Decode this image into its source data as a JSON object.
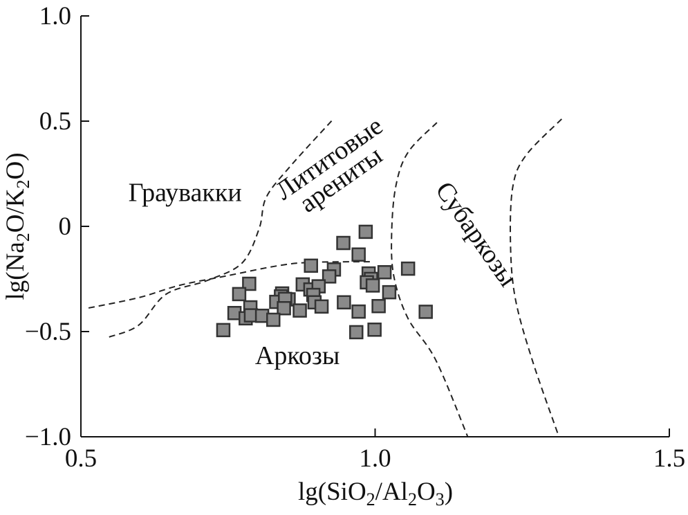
{
  "chart_data": {
    "type": "scatter",
    "xlabel": "lg(SiO2/Al2O3)",
    "ylabel": "lg(Na2O/K2O)",
    "xlim": [
      0.5,
      1.5
    ],
    "ylim": [
      -1.0,
      1.0
    ],
    "xticks": [
      "0.5",
      "1.0",
      "1.5"
    ],
    "xtick_values": [
      0.5,
      1.0,
      1.5
    ],
    "yticks": [
      "1.0",
      "0.5",
      "0",
      "−0.5",
      "−1.0"
    ],
    "ytick_values": [
      1.0,
      0.5,
      0,
      -0.5,
      -1.0
    ],
    "grid": false,
    "marker": "square",
    "colors": {
      "marker_fill": "#8a8a8a",
      "marker_edge": "#333333",
      "boundary": "#222222"
    },
    "points": [
      [
        0.984,
        -0.026
      ],
      [
        0.946,
        -0.079
      ],
      [
        0.972,
        -0.134
      ],
      [
        0.891,
        -0.187
      ],
      [
        0.93,
        -0.205
      ],
      [
        0.922,
        -0.238
      ],
      [
        0.786,
        -0.273
      ],
      [
        0.769,
        -0.322
      ],
      [
        0.877,
        -0.276
      ],
      [
        0.89,
        -0.3
      ],
      [
        0.904,
        -0.285
      ],
      [
        0.895,
        -0.326
      ],
      [
        0.897,
        -0.361
      ],
      [
        0.909,
        -0.381
      ],
      [
        0.842,
        -0.319
      ],
      [
        0.84,
        -0.333
      ],
      [
        0.832,
        -0.359
      ],
      [
        0.853,
        -0.347
      ],
      [
        0.847,
        -0.345
      ],
      [
        0.845,
        -0.389
      ],
      [
        0.872,
        -0.4
      ],
      [
        0.788,
        -0.385
      ],
      [
        0.761,
        -0.412
      ],
      [
        0.78,
        -0.437
      ],
      [
        0.789,
        -0.423
      ],
      [
        0.808,
        -0.425
      ],
      [
        0.827,
        -0.444
      ],
      [
        0.742,
        -0.493
      ],
      [
        0.989,
        -0.224
      ],
      [
        0.993,
        -0.25
      ],
      [
        0.986,
        -0.266
      ],
      [
        0.996,
        -0.281
      ],
      [
        1.016,
        -0.218
      ],
      [
        1.056,
        -0.201
      ],
      [
        1.024,
        -0.313
      ],
      [
        0.947,
        -0.361
      ],
      [
        0.972,
        -0.405
      ],
      [
        1.006,
        -0.379
      ],
      [
        1.086,
        -0.406
      ],
      [
        0.968,
        -0.503
      ],
      [
        0.999,
        -0.491
      ]
    ],
    "boundaries": [
      [
        [
          0.513,
          -0.388
        ],
        [
          0.598,
          -0.339
        ],
        [
          0.668,
          -0.28
        ],
        [
          0.75,
          -0.234
        ],
        [
          0.833,
          -0.188
        ],
        [
          0.891,
          -0.171
        ],
        [
          0.997,
          -0.168
        ]
      ],
      [
        [
          0.548,
          -0.526
        ],
        [
          0.598,
          -0.47
        ],
        [
          0.645,
          -0.322
        ],
        [
          0.715,
          -0.257
        ],
        [
          0.774,
          -0.174
        ],
        [
          0.803,
          -0.01
        ],
        [
          0.815,
          0.138
        ],
        [
          0.856,
          0.286
        ],
        [
          0.929,
          0.51
        ]
      ],
      [
        [
          1.105,
          0.493
        ],
        [
          1.056,
          0.352
        ],
        [
          1.035,
          0.188
        ],
        [
          1.028,
          -0.043
        ],
        [
          1.032,
          -0.24
        ],
        [
          1.056,
          -0.438
        ],
        [
          1.103,
          -0.635
        ],
        [
          1.157,
          -0.997
        ]
      ],
      [
        [
          1.317,
          0.51
        ],
        [
          1.256,
          0.336
        ],
        [
          1.234,
          0.188
        ],
        [
          1.23,
          -0.076
        ],
        [
          1.238,
          -0.339
        ],
        [
          1.267,
          -0.635
        ],
        [
          1.312,
          -0.997
        ]
      ]
    ],
    "region_labels": [
      {
        "text": "Граувакки",
        "x": 0.677,
        "y": 0.12,
        "rotate": 0
      },
      {
        "text": "Лититовые",
        "x": 0.93,
        "y": 0.29,
        "rotate": -35
      },
      {
        "text": "арениты",
        "x": 0.95,
        "y": 0.19,
        "rotate": -35
      },
      {
        "text": "Субаркозы",
        "x": 1.16,
        "y": -0.06,
        "rotate": 55
      },
      {
        "text": "Аркозы",
        "x": 0.868,
        "y": -0.655,
        "rotate": 0
      }
    ]
  }
}
